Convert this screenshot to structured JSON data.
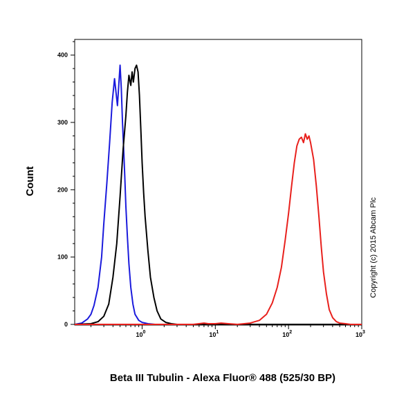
{
  "chart_data": {
    "type": "line",
    "xscale": "log",
    "xlim": [
      0.12,
      1000
    ],
    "ylim": [
      0,
      450
    ],
    "xlabel": "Beta III Tubulin - Alexa Fluor® 488 (525/30 BP)",
    "ylabel": "Count",
    "annotation": "Copyright (c) 2015 Abcam Plc",
    "yticks": [
      0,
      100,
      200,
      300,
      400
    ],
    "xticks": [
      {
        "base": "10",
        "exp": "0",
        "value": 1
      },
      {
        "base": "10",
        "exp": "1",
        "value": 10
      },
      {
        "base": "10",
        "exp": "2",
        "value": 100
      },
      {
        "base": "10",
        "exp": "3",
        "value": 1000
      }
    ],
    "series": [
      {
        "color": "#1a1adc",
        "x": [
          0.12,
          0.15,
          0.18,
          0.2,
          0.22,
          0.25,
          0.28,
          0.3,
          0.33,
          0.36,
          0.39,
          0.42,
          0.44,
          0.46,
          0.48,
          0.5,
          0.52,
          0.54,
          0.56,
          0.58,
          0.6,
          0.63,
          0.66,
          0.7,
          0.75,
          0.8,
          0.9,
          1.0,
          1.2,
          1.5,
          2.0,
          1000
        ],
        "y": [
          0,
          2,
          8,
          15,
          28,
          55,
          100,
          150,
          210,
          270,
          330,
          365,
          345,
          325,
          355,
          385,
          350,
          300,
          260,
          220,
          175,
          130,
          90,
          55,
          30,
          15,
          6,
          3,
          1,
          0,
          0,
          0
        ]
      },
      {
        "color": "#000000",
        "x": [
          0.12,
          0.2,
          0.25,
          0.3,
          0.35,
          0.4,
          0.45,
          0.5,
          0.55,
          0.6,
          0.63,
          0.66,
          0.7,
          0.73,
          0.76,
          0.8,
          0.84,
          0.88,
          0.92,
          0.96,
          1.0,
          1.05,
          1.1,
          1.2,
          1.3,
          1.45,
          1.6,
          1.8,
          2.1,
          2.5,
          3.0,
          1000
        ],
        "y": [
          0,
          1,
          4,
          12,
          30,
          70,
          120,
          190,
          260,
          310,
          345,
          370,
          355,
          375,
          360,
          380,
          385,
          375,
          340,
          290,
          240,
          195,
          160,
          110,
          70,
          40,
          20,
          8,
          3,
          1,
          0,
          0
        ]
      },
      {
        "color": "#e8201c",
        "x": [
          0.12,
          5,
          6,
          7,
          8,
          10,
          12,
          15,
          20,
          30,
          40,
          50,
          60,
          70,
          80,
          90,
          100,
          110,
          120,
          130,
          140,
          150,
          160,
          170,
          180,
          190,
          200,
          220,
          240,
          260,
          280,
          300,
          330,
          360,
          400,
          450,
          500,
          600,
          700,
          800,
          1000
        ],
        "y": [
          0,
          0,
          1,
          2,
          1,
          1,
          2,
          1,
          0,
          2,
          6,
          15,
          32,
          55,
          85,
          125,
          165,
          205,
          240,
          265,
          275,
          278,
          270,
          283,
          275,
          280,
          270,
          245,
          205,
          160,
          115,
          78,
          45,
          22,
          10,
          4,
          2,
          1,
          0,
          0,
          0
        ]
      }
    ],
    "grid": false,
    "legend": "none"
  }
}
